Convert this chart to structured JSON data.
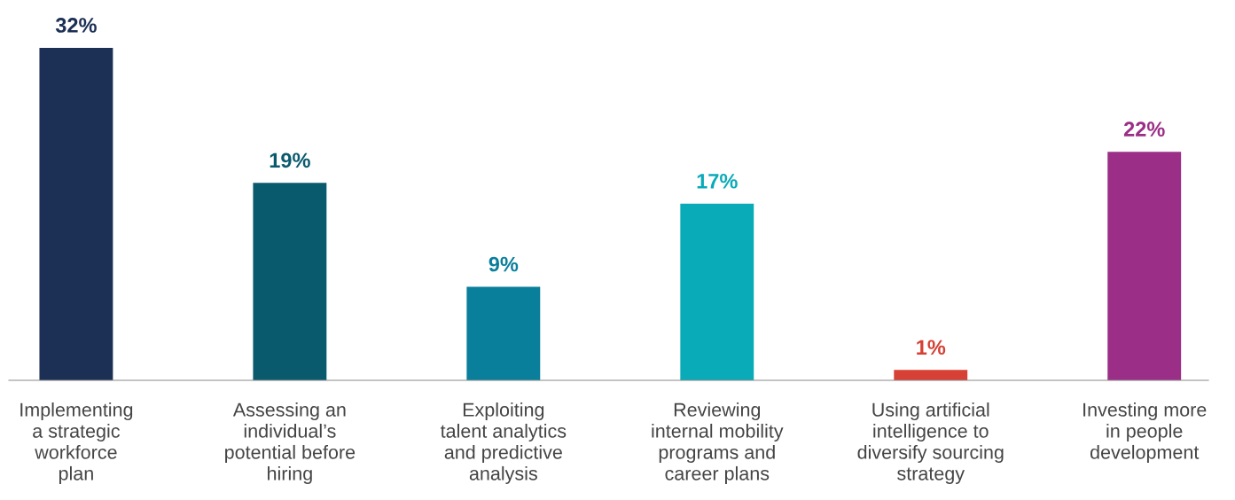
{
  "chart_data": {
    "type": "bar",
    "categories": [
      "Implementing\na strategic\nworkforce\nplan",
      "Assessing an\nindividual’s\npotential before\nhiring",
      "Exploiting\ntalent analytics\nand predictive\nanalysis",
      "Reviewing\ninternal mobility\nprograms and\ncareer plans",
      "Using artificial\nintelligence to\ndiversify sourcing\nstrategy",
      "Investing more\nin people\ndevelopment"
    ],
    "values": [
      32,
      19,
      9,
      17,
      1,
      22
    ],
    "colors": [
      "#1c2f55",
      "#0a5a6e",
      "#0a7f9c",
      "#0aabb8",
      "#d64035",
      "#9b2f87"
    ],
    "value_labels": [
      "32%",
      "19%",
      "9%",
      "17%",
      "1%",
      "22%"
    ],
    "grid": false,
    "legend": false,
    "tick_labels": "x"
  }
}
